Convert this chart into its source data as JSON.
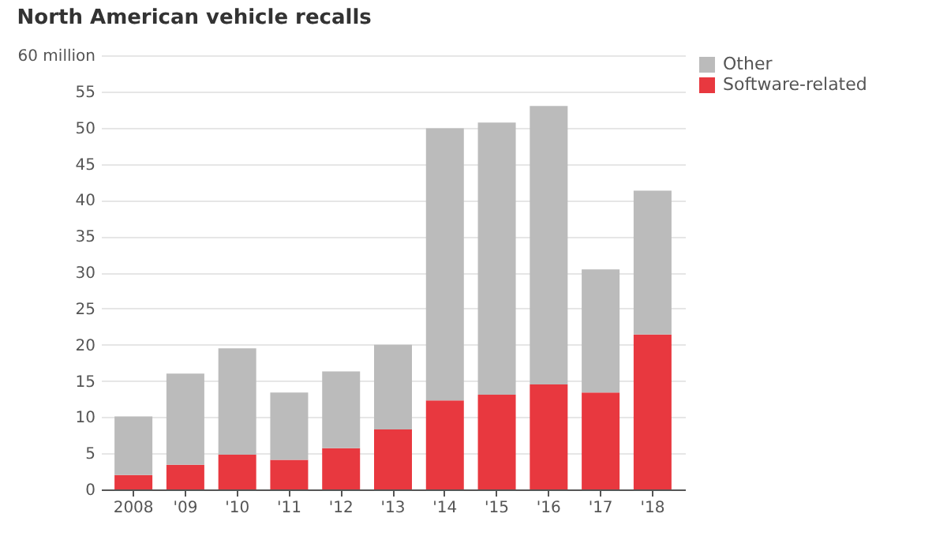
{
  "chart_data": {
    "type": "bar",
    "title": "North American vehicle recalls",
    "stacked": true,
    "categories": [
      "2008",
      "'09",
      "'10",
      "'11",
      "'12",
      "'13",
      "'14",
      "'15",
      "'16",
      "'17",
      "'18"
    ],
    "series": [
      {
        "name": "Software-related",
        "color": "#e8383f",
        "values": [
          2.0,
          3.4,
          4.8,
          4.1,
          5.7,
          8.3,
          12.3,
          13.1,
          14.5,
          13.4,
          21.4
        ]
      },
      {
        "name": "Other",
        "color": "#bbbbbb",
        "values": [
          8.1,
          12.6,
          14.7,
          9.3,
          10.6,
          11.7,
          37.6,
          37.6,
          38.5,
          17.0,
          19.9
        ]
      }
    ],
    "ylim": [
      0,
      60
    ],
    "yticks": [
      0,
      5,
      10,
      15,
      20,
      25,
      30,
      35,
      40,
      45,
      50,
      55,
      {
        "value": 60,
        "label": "60 million"
      }
    ],
    "grid": "y",
    "legend": "right"
  }
}
